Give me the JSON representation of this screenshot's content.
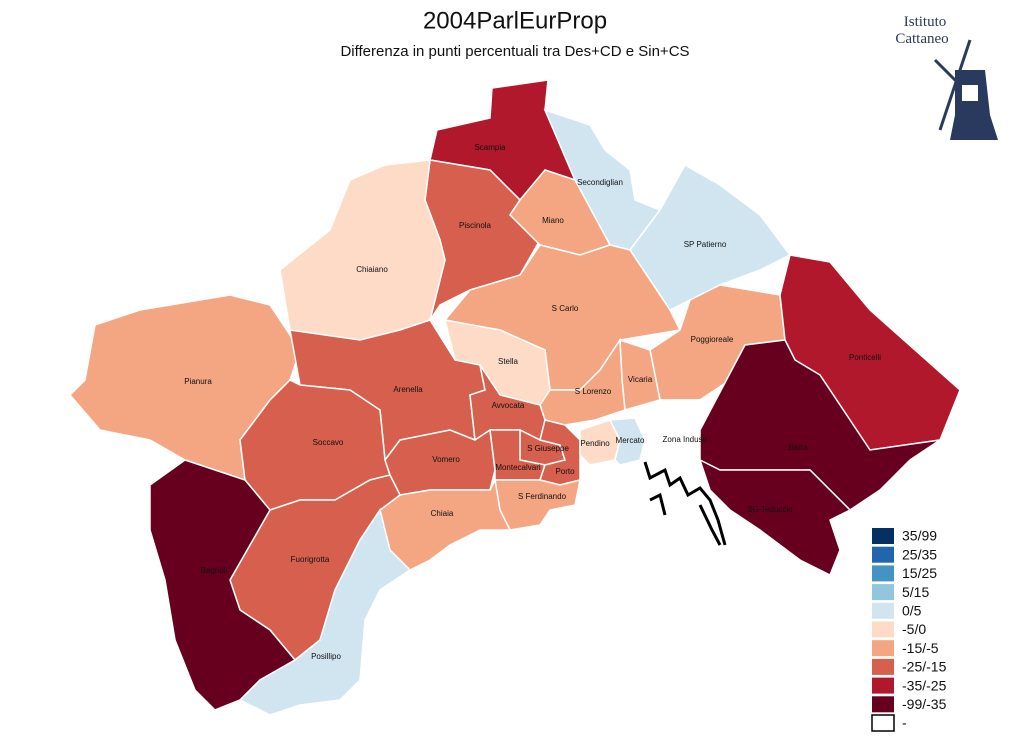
{
  "header": {
    "title": "2004ParlEurProp",
    "subtitle": "Differenza in punti percentuali tra Des+CD e Sin+CS"
  },
  "logo": {
    "lines": [
      "Istituto",
      "Cattaneo"
    ]
  },
  "legend": [
    {
      "label": "35/99",
      "color": "#053061"
    },
    {
      "label": "25/35",
      "color": "#2166ac"
    },
    {
      "label": "15/25",
      "color": "#4393c3"
    },
    {
      "label": "5/15",
      "color": "#92c5de"
    },
    {
      "label": "0/5",
      "color": "#d1e5f0"
    },
    {
      "label": "-5/0",
      "color": "#fddbc7"
    },
    {
      "label": "-15/-5",
      "color": "#f4a582"
    },
    {
      "label": "-25/-15",
      "color": "#d6604d"
    },
    {
      "label": "-35/-25",
      "color": "#b2182b"
    },
    {
      "label": "-99/-35",
      "color": "#67001f"
    },
    {
      "label": "-",
      "color": "#ffffff"
    }
  ],
  "districts": [
    {
      "name": "Scampia",
      "color": "#b2182b"
    },
    {
      "name": "Secondiglian",
      "color": "#d1e5f0"
    },
    {
      "name": "SP Patierno",
      "color": "#d1e5f0"
    },
    {
      "name": "Piscinola",
      "color": "#d6604d"
    },
    {
      "name": "Miano",
      "color": "#f4a582"
    },
    {
      "name": "Chiaiano",
      "color": "#fddbc7"
    },
    {
      "name": "S Carlo",
      "color": "#f4a582"
    },
    {
      "name": "Poggioreale",
      "color": "#f4a582"
    },
    {
      "name": "Ponticelli",
      "color": "#b2182b"
    },
    {
      "name": "Vicaria",
      "color": "#f4a582"
    },
    {
      "name": "Stella",
      "color": "#fddbc7"
    },
    {
      "name": "S Lorenzo",
      "color": "#f4a582"
    },
    {
      "name": "Pianura",
      "color": "#f4a582"
    },
    {
      "name": "Arenella",
      "color": "#d6604d"
    },
    {
      "name": "Avvocata",
      "color": "#d6604d"
    },
    {
      "name": "Soccavo",
      "color": "#d6604d"
    },
    {
      "name": "Vomero",
      "color": "#d6604d"
    },
    {
      "name": "S Giuseppe",
      "color": "#d6604d"
    },
    {
      "name": "Montecalvari",
      "color": "#d6604d"
    },
    {
      "name": "Porto",
      "color": "#d6604d"
    },
    {
      "name": "Pendino",
      "color": "#fddbc7"
    },
    {
      "name": "Mercato",
      "color": "#d1e5f0"
    },
    {
      "name": "Zona Industr",
      "color": "#ffffff"
    },
    {
      "name": "Barra",
      "color": "#67001f"
    },
    {
      "name": "SG Teduccio",
      "color": "#67001f"
    },
    {
      "name": "S Ferdinando",
      "color": "#f4a582"
    },
    {
      "name": "Chiaia",
      "color": "#f4a582"
    },
    {
      "name": "Fuorigrotta",
      "color": "#d6604d"
    },
    {
      "name": "Bagnoli",
      "color": "#67001f"
    },
    {
      "name": "Posillipo",
      "color": "#d1e5f0"
    }
  ]
}
